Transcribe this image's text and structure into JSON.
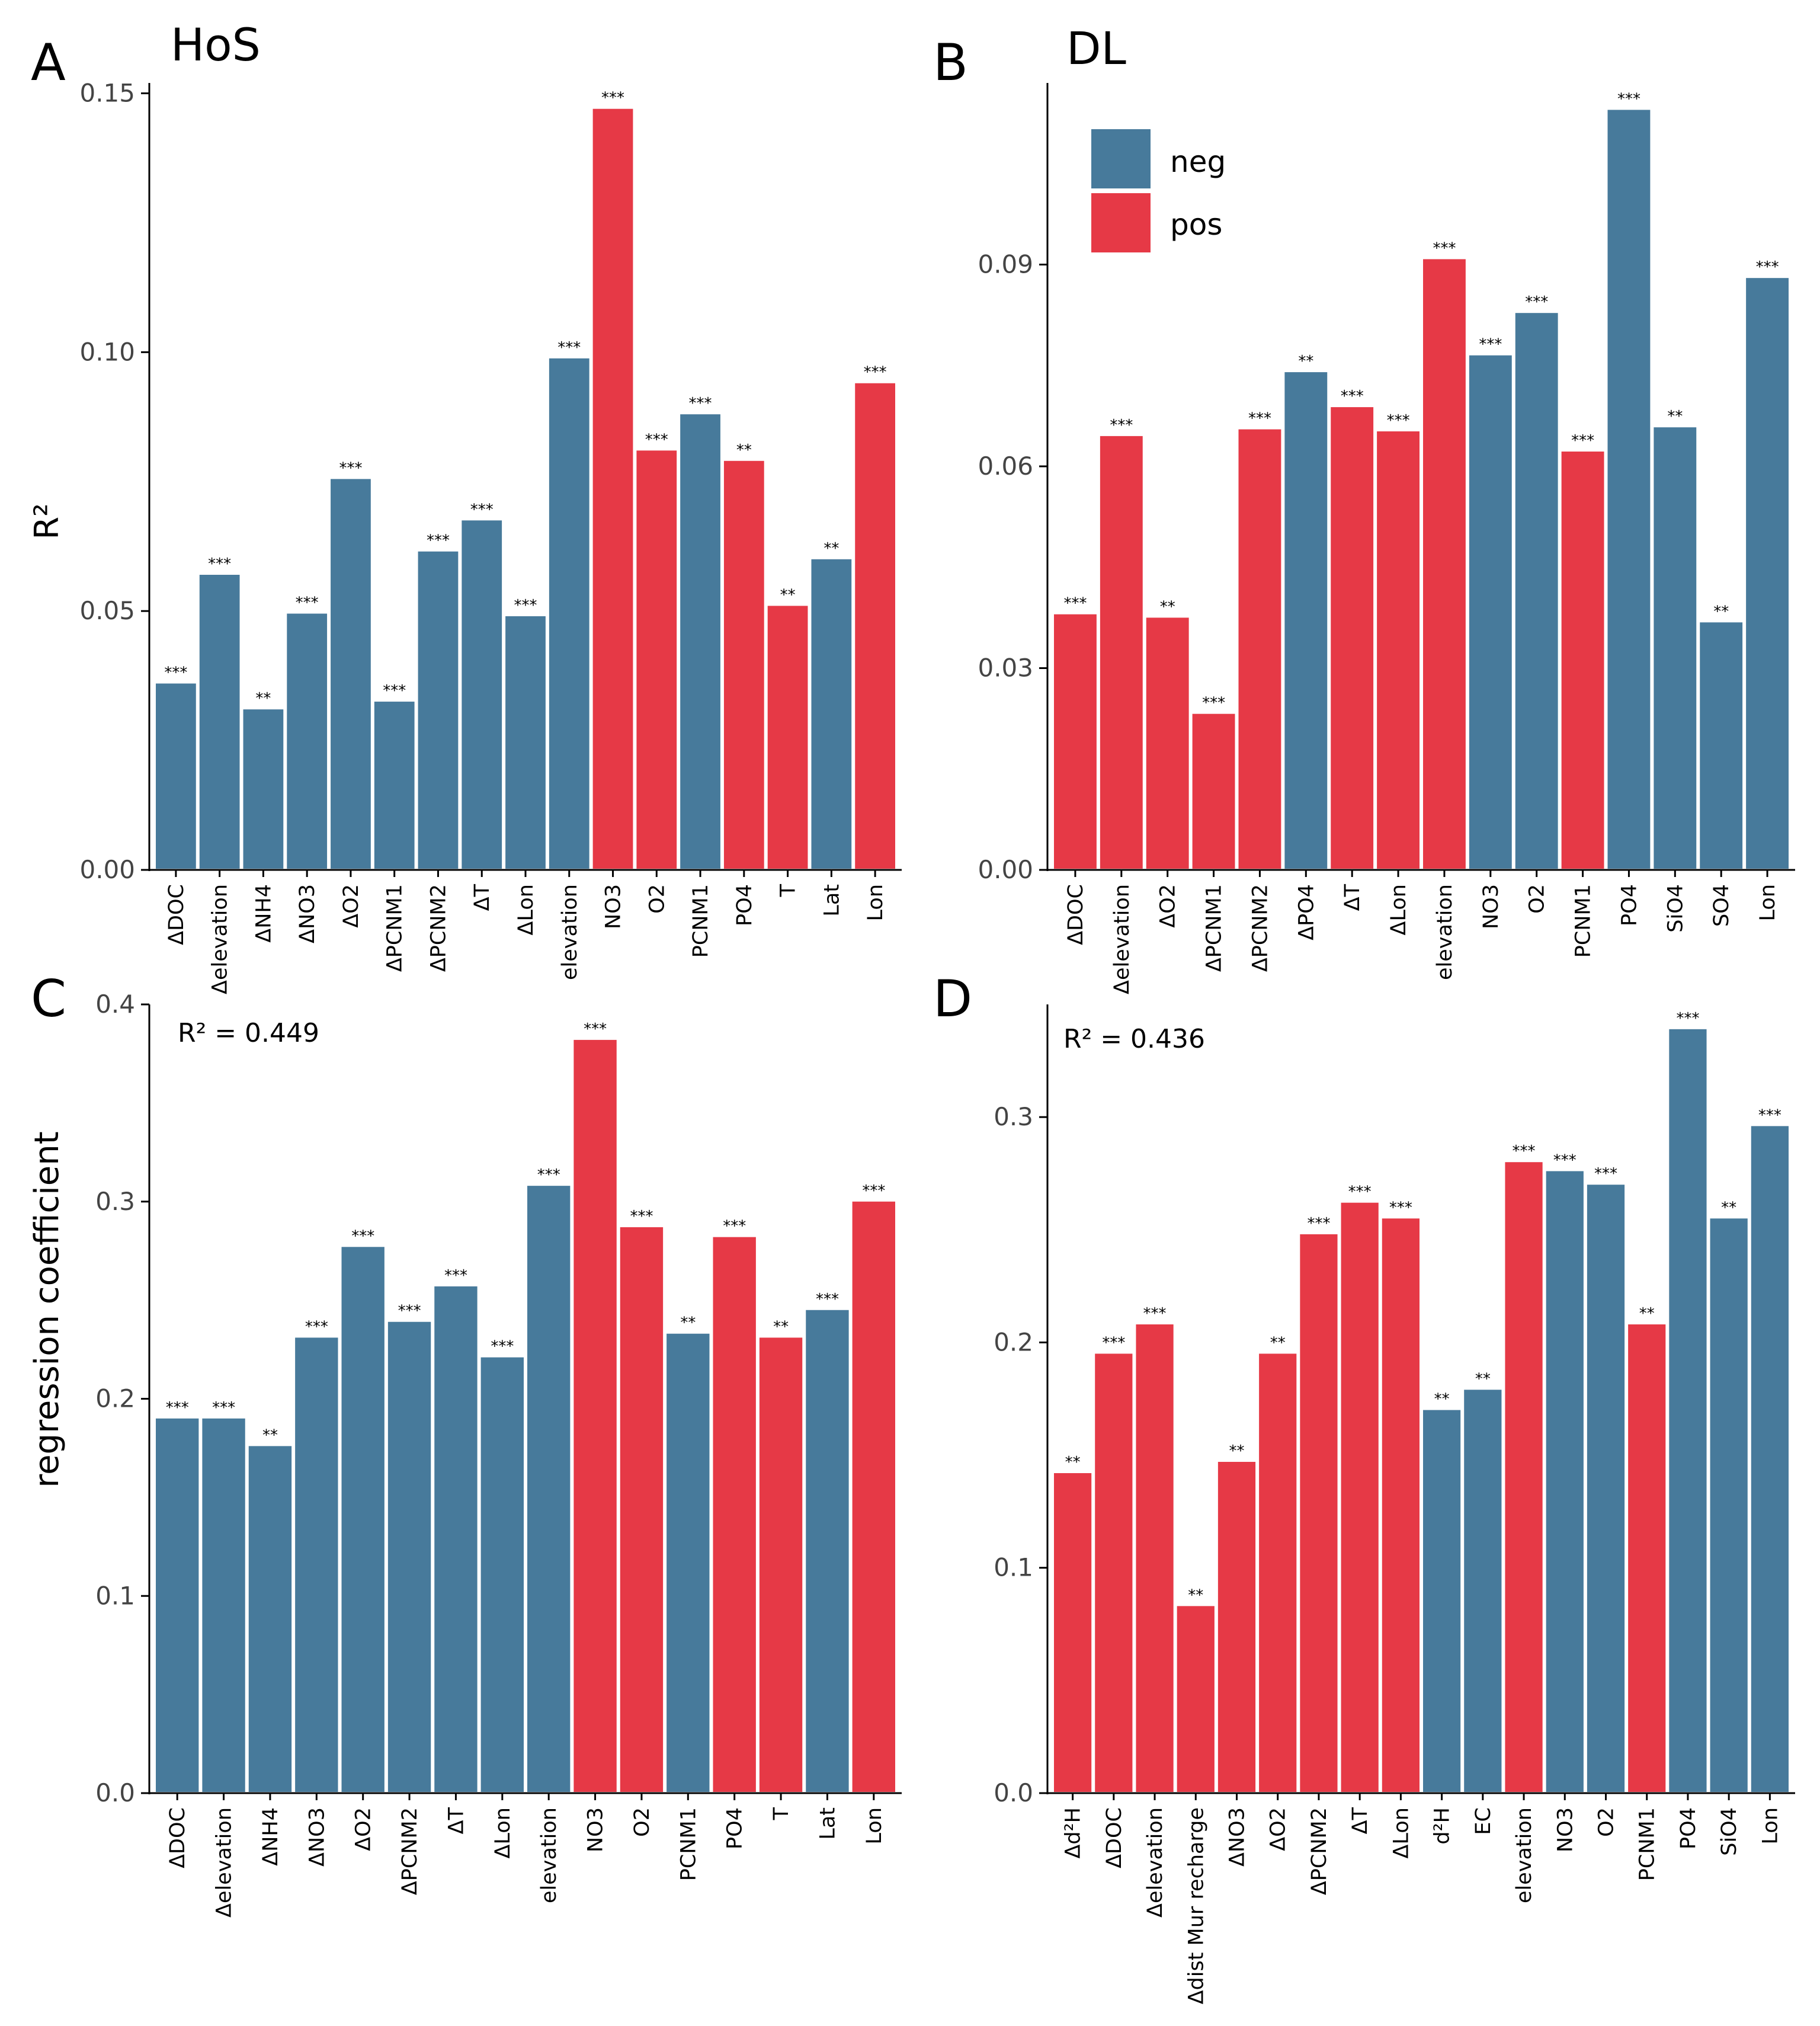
{
  "colors": {
    "neg": "#477a9b",
    "pos": "#e63946",
    "axis": "#000000",
    "tick_label": "#444444"
  },
  "legend": {
    "items": [
      {
        "key": "neg",
        "label": "neg"
      },
      {
        "key": "pos",
        "label": "pos"
      }
    ],
    "placement": "top-left inside panel B"
  },
  "chart_data": [
    {
      "panel": "A",
      "type": "bar",
      "title": "HoS",
      "ylabel": "R²",
      "ylim": [
        0,
        0.152
      ],
      "yticks": [
        0.0,
        0.05,
        0.1,
        0.15
      ],
      "ytick_labels": [
        "0.00",
        "0.05",
        "0.10",
        "0.15"
      ],
      "categories": [
        "ΔDOC",
        "Δelevation",
        "ΔNH4",
        "ΔNO3",
        "ΔO2",
        "ΔPCNM1",
        "ΔPCNM2",
        "ΔT",
        "ΔLon",
        "elevation",
        "NO3",
        "O2",
        "PCNM1",
        "PO4",
        "T",
        "Lat",
        "Lon"
      ],
      "values": [
        0.036,
        0.057,
        0.031,
        0.0495,
        0.0755,
        0.0325,
        0.0615,
        0.0675,
        0.049,
        0.0988,
        0.147,
        0.081,
        0.088,
        0.079,
        0.051,
        0.06,
        0.094
      ],
      "signs": [
        "neg",
        "neg",
        "neg",
        "neg",
        "neg",
        "neg",
        "neg",
        "neg",
        "neg",
        "neg",
        "pos",
        "pos",
        "neg",
        "pos",
        "pos",
        "neg",
        "pos"
      ],
      "significance": [
        "***",
        "***",
        "**",
        "***",
        "***",
        "***",
        "***",
        "***",
        "***",
        "***",
        "***",
        "***",
        "***",
        "**",
        "**",
        "**",
        "***"
      ]
    },
    {
      "panel": "B",
      "type": "bar",
      "title": "DL",
      "ylabel": "",
      "ylim": [
        0,
        0.117
      ],
      "yticks": [
        0.0,
        0.03,
        0.06,
        0.09
      ],
      "ytick_labels": [
        "0.00",
        "0.03",
        "0.06",
        "0.09"
      ],
      "categories": [
        "ΔDOC",
        "Δelevation",
        "ΔO2",
        "ΔPCNM1",
        "ΔPCNM2",
        "ΔPO4",
        "ΔT",
        "ΔLon",
        "elevation",
        "NO3",
        "O2",
        "PCNM1",
        "PO4",
        "SiO4",
        "SO4",
        "Lon"
      ],
      "values": [
        0.038,
        0.0645,
        0.0375,
        0.0232,
        0.0655,
        0.074,
        0.0688,
        0.0652,
        0.0908,
        0.0765,
        0.0828,
        0.0622,
        0.113,
        0.0658,
        0.0368,
        0.088
      ],
      "signs": [
        "pos",
        "pos",
        "pos",
        "pos",
        "pos",
        "neg",
        "pos",
        "pos",
        "pos",
        "neg",
        "neg",
        "pos",
        "neg",
        "neg",
        "neg",
        "neg"
      ],
      "significance": [
        "***",
        "***",
        "**",
        "***",
        "***",
        "**",
        "***",
        "***",
        "***",
        "***",
        "***",
        "***",
        "***",
        "**",
        "**",
        "***"
      ]
    },
    {
      "panel": "C",
      "type": "bar",
      "title": "",
      "annotation": "R² = 0.449",
      "ylabel": "regression coefficient",
      "ylim": [
        0,
        0.4
      ],
      "yticks": [
        0.0,
        0.1,
        0.2,
        0.3,
        0.4
      ],
      "ytick_labels": [
        "0.0",
        "0.1",
        "0.2",
        "0.3",
        "0.4"
      ],
      "categories": [
        "ΔDOC",
        "Δelevation",
        "ΔNH4",
        "ΔNO3",
        "ΔO2",
        "ΔPCNM2",
        "ΔT",
        "ΔLon",
        "elevation",
        "NO3",
        "O2",
        "PCNM1",
        "PO4",
        "T",
        "Lat",
        "Lon"
      ],
      "values": [
        0.19,
        0.19,
        0.176,
        0.231,
        0.277,
        0.239,
        0.257,
        0.221,
        0.308,
        0.382,
        0.287,
        0.233,
        0.282,
        0.231,
        0.245,
        0.3
      ],
      "signs": [
        "neg",
        "neg",
        "neg",
        "neg",
        "neg",
        "neg",
        "neg",
        "neg",
        "neg",
        "pos",
        "pos",
        "neg",
        "pos",
        "pos",
        "neg",
        "pos"
      ],
      "significance": [
        "***",
        "***",
        "**",
        "***",
        "***",
        "***",
        "***",
        "***",
        "***",
        "***",
        "***",
        "**",
        "***",
        "**",
        "***",
        "***"
      ]
    },
    {
      "panel": "D",
      "type": "bar",
      "title": "",
      "annotation": "R² = 0.436",
      "ylabel": "",
      "ylim": [
        0,
        0.35
      ],
      "yticks": [
        0.0,
        0.1,
        0.2,
        0.3
      ],
      "ytick_labels": [
        "0.0",
        "0.1",
        "0.2",
        "0.3"
      ],
      "categories": [
        "Δd²H",
        "ΔDOC",
        "Δelevation",
        "Δdist Mur recharge",
        "ΔNO3",
        "ΔO2",
        "ΔPCNM2",
        "ΔT",
        "ΔLon",
        "d²H",
        "EC",
        "elevation",
        "NO3",
        "O2",
        "PCNM1",
        "PO4",
        "SiO4",
        "Lon"
      ],
      "values": [
        0.142,
        0.195,
        0.208,
        0.083,
        0.147,
        0.195,
        0.248,
        0.262,
        0.255,
        0.17,
        0.179,
        0.28,
        0.276,
        0.27,
        0.208,
        0.339,
        0.255,
        0.296
      ],
      "signs": [
        "pos",
        "pos",
        "pos",
        "pos",
        "pos",
        "pos",
        "pos",
        "pos",
        "pos",
        "neg",
        "neg",
        "pos",
        "neg",
        "neg",
        "pos",
        "neg",
        "neg",
        "neg"
      ],
      "significance": [
        "**",
        "***",
        "***",
        "**",
        "**",
        "**",
        "***",
        "***",
        "***",
        "**",
        "**",
        "***",
        "***",
        "***",
        "**",
        "***",
        "**",
        "***"
      ]
    }
  ]
}
